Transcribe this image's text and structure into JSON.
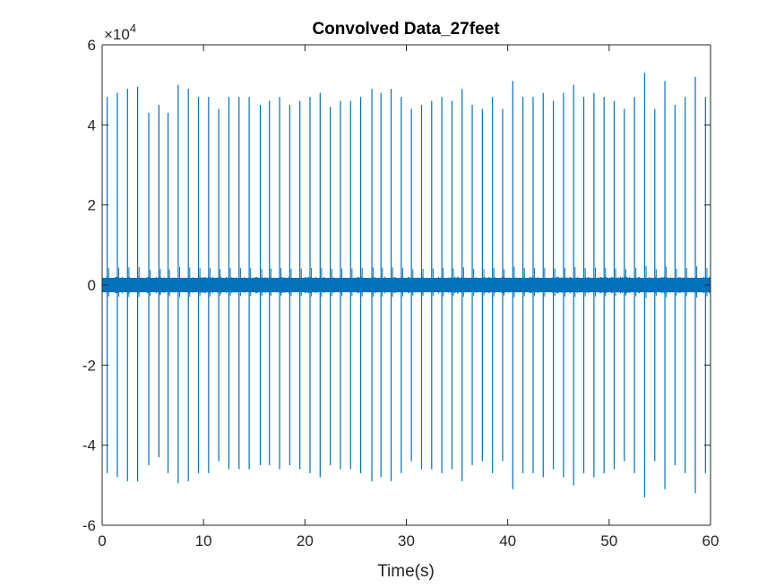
{
  "chart_data": {
    "type": "line",
    "title": "Convolved Data_27feet",
    "xlabel": "Time(s)",
    "ylabel": "",
    "xlim": [
      0,
      60
    ],
    "ylim": [
      -60000,
      60000
    ],
    "y_exponent_label": "×10",
    "y_exponent_power": "4",
    "x_ticks": [
      0,
      10,
      20,
      30,
      40,
      50,
      60
    ],
    "x_tick_labels": [
      "0",
      "10",
      "20",
      "30",
      "40",
      "50",
      "60"
    ],
    "y_ticks": [
      -6,
      -4,
      -2,
      0,
      2,
      4,
      6
    ],
    "y_tick_labels": [
      "-6",
      "-4",
      "-2",
      "0",
      "2",
      "4",
      "6"
    ],
    "grid": false,
    "legend": "none",
    "series_color": "#0072BD",
    "noise_band": [
      -1800,
      1800
    ],
    "series": [
      {
        "spike_times": [
          0.5,
          1.5,
          2.5,
          3.5,
          4.6,
          5.6,
          6.5,
          7.5,
          8.5,
          9.5,
          10.5,
          11.5,
          12.5,
          13.5,
          14.5,
          15.6,
          16.5,
          17.5,
          18.5,
          19.5,
          20.5,
          21.5,
          22.5,
          23.5,
          24.5,
          25.5,
          26.6,
          27.5,
          28.5,
          29.5,
          30.5,
          31.5,
          32.5,
          33.5,
          34.5,
          35.5,
          36.5,
          37.5,
          38.5,
          39.5,
          40.5,
          41.5,
          42.5,
          43.5,
          44.5,
          45.5,
          46.5,
          47.5,
          48.5,
          49.5,
          50.5,
          51.5,
          52.5,
          53.5,
          54.5,
          55.5,
          56.5,
          57.5,
          58.5,
          59.5
        ],
        "spike_peaks": [
          47000,
          48000,
          49000,
          49500,
          43000,
          45000,
          43000,
          50000,
          49000,
          47000,
          47000,
          44000,
          47000,
          47000,
          47000,
          45000,
          46000,
          47000,
          45000,
          46000,
          47000,
          48000,
          44500,
          46000,
          46000,
          47000,
          49000,
          48000,
          49000,
          47000,
          44000,
          45000,
          46000,
          47000,
          46000,
          49000,
          45000,
          44000,
          47000,
          44000,
          51000,
          47000,
          47000,
          48000,
          46000,
          48000,
          50000,
          47000,
          48000,
          47000,
          46000,
          44000,
          47000,
          53000,
          44000,
          51000,
          45000,
          47000,
          52000,
          47000
        ],
        "spike_troughs": [
          -47000,
          -48000,
          -49000,
          -49000,
          -45000,
          -43000,
          -47000,
          -49500,
          -49000,
          -47000,
          -47000,
          -44000,
          -46000,
          -46000,
          -46000,
          -45000,
          -45000,
          -46000,
          -45000,
          -46000,
          -47000,
          -48000,
          -45000,
          -46000,
          -46000,
          -47000,
          -49000,
          -48000,
          -49000,
          -47000,
          -44000,
          -46000,
          -46000,
          -47000,
          -46000,
          -49000,
          -45000,
          -44000,
          -47000,
          -44000,
          -51000,
          -47000,
          -47000,
          -48000,
          -46000,
          -48000,
          -50000,
          -47000,
          -48000,
          -47000,
          -46000,
          -44000,
          -47000,
          -53000,
          -44000,
          -51000,
          -45000,
          -47000,
          -52000,
          -47000
        ]
      }
    ]
  }
}
